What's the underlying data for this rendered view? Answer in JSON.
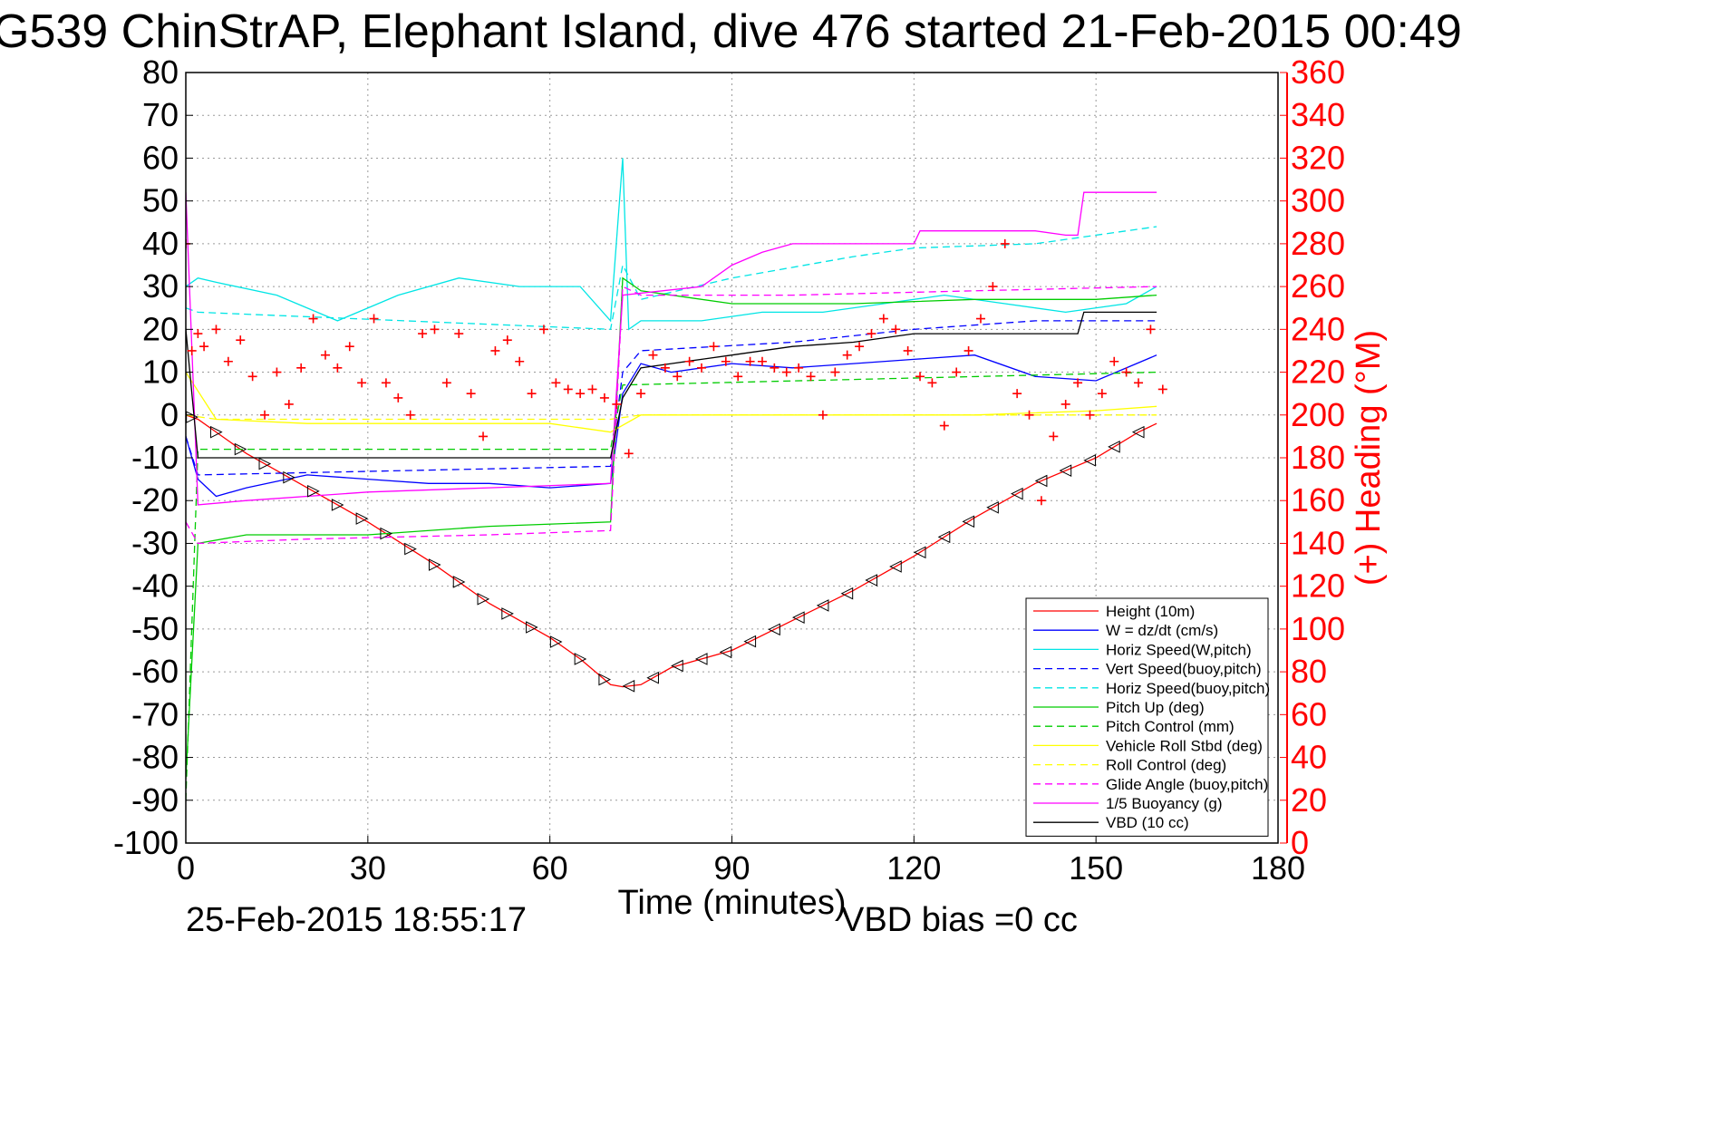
{
  "chart_data": {
    "type": "line",
    "title": "G539 ChinStrAP, Elephant Island, dive 476 started 21-Feb-2015 00:49",
    "xlabel": "Time (minutes)",
    "ylabel_right": "(+) Heading (°M)",
    "xlim": [
      0,
      180
    ],
    "ylim": [
      -100,
      80
    ],
    "ylim_right": [
      0,
      360
    ],
    "x_ticks": [
      "0",
      "30",
      "60",
      "90",
      "120",
      "150",
      "180"
    ],
    "y_ticks": [
      "80",
      "70",
      "60",
      "50",
      "40",
      "30",
      "20",
      "10",
      "0",
      "-10",
      "-20",
      "-30",
      "-40",
      "-50",
      "-60",
      "-70",
      "-80",
      "-90",
      "-100"
    ],
    "y_ticks_right": [
      "360",
      "340",
      "320",
      "300",
      "280",
      "260",
      "240",
      "220",
      "200",
      "180",
      "160",
      "140",
      "120",
      "100",
      "80",
      "60",
      "40",
      "20",
      "0"
    ],
    "grid": true,
    "legend_position": "bottom-right",
    "footer_date": "25-Feb-2015 18:55:17",
    "footer_bias": "VBD bias =0 cc",
    "colors": {
      "red": "#ff0000",
      "blue": "#0000ff",
      "cyan": "#00e5e5",
      "green": "#00cc00",
      "yellow": "#ffff00",
      "magenta": "#ff00ff",
      "black": "#000000"
    },
    "series": [
      {
        "name": "Height (10m)",
        "color": "#ff0000",
        "dash": false,
        "x": [
          0,
          2,
          10,
          20,
          30,
          40,
          50,
          60,
          65,
          70,
          72,
          75,
          80,
          90,
          100,
          110,
          120,
          130,
          140,
          150,
          157,
          160
        ],
        "y": [
          0,
          -1,
          -9,
          -17,
          -25,
          -34,
          -44,
          -52,
          -57,
          -63,
          -63.5,
          -63,
          -59,
          -55,
          -48,
          -41,
          -33,
          -24,
          -16,
          -10,
          -4,
          -2
        ]
      },
      {
        "name": "W = dz/dt (cm/s)",
        "color": "#0000ff",
        "dash": false,
        "x": [
          0,
          2,
          5,
          10,
          20,
          30,
          40,
          50,
          60,
          70,
          72,
          75,
          80,
          90,
          100,
          110,
          120,
          130,
          140,
          150,
          160
        ],
        "y": [
          -5,
          -15,
          -19,
          -17,
          -14,
          -15,
          -16,
          -16,
          -17,
          -16,
          5,
          12,
          10,
          12,
          11,
          12,
          13,
          14,
          9,
          8,
          14
        ]
      },
      {
        "name": "Horiz Speed(W,pitch)",
        "color": "#00e5e5",
        "dash": false,
        "x": [
          0,
          2,
          5,
          15,
          25,
          35,
          45,
          55,
          65,
          70,
          72,
          73,
          75,
          85,
          95,
          105,
          115,
          125,
          135,
          145,
          155,
          160
        ],
        "y": [
          30,
          32,
          31,
          28,
          22,
          28,
          32,
          30,
          30,
          22,
          60,
          20,
          22,
          22,
          24,
          24,
          26,
          28,
          26,
          24,
          26,
          30
        ]
      },
      {
        "name": "Vert Speed(buoy,pitch)",
        "color": "#0000ff",
        "dash": true,
        "x": [
          0,
          2,
          70,
          72,
          75,
          100,
          120,
          140,
          160
        ],
        "y": [
          -5,
          -14,
          -12,
          10,
          15,
          17,
          20,
          22,
          22
        ]
      },
      {
        "name": "Horiz Speed(buoy,pitch)",
        "color": "#00e5e5",
        "dash": true,
        "x": [
          0,
          2,
          70,
          72,
          75,
          90,
          110,
          120,
          140,
          150,
          160
        ],
        "y": [
          25,
          24,
          20,
          35,
          27,
          32,
          37,
          39,
          40,
          42,
          44
        ]
      },
      {
        "name": "Pitch Up (deg)",
        "color": "#00cc00",
        "dash": false,
        "x": [
          0,
          2,
          10,
          30,
          50,
          70,
          72,
          75,
          90,
          110,
          130,
          150,
          160
        ],
        "y": [
          -85,
          -30,
          -28,
          -28,
          -26,
          -25,
          32,
          29,
          26,
          26,
          27,
          27,
          28
        ]
      },
      {
        "name": "Pitch Control (mm)",
        "color": "#00cc00",
        "dash": true,
        "x": [
          0,
          2,
          70,
          72,
          160
        ],
        "y": [
          -90,
          -8,
          -8,
          7,
          10
        ]
      },
      {
        "name": "Vehicle Roll Stbd (deg)",
        "color": "#ffff00",
        "dash": false,
        "x": [
          0,
          5,
          20,
          40,
          60,
          70,
          75,
          90,
          110,
          130,
          150,
          160
        ],
        "y": [
          10,
          -1,
          -2,
          -2,
          -2,
          -4,
          0,
          0,
          0,
          0,
          1,
          2
        ]
      },
      {
        "name": "Roll Control (deg)",
        "color": "#ffff00",
        "dash": true,
        "x": [
          0,
          5,
          70,
          75,
          160
        ],
        "y": [
          0,
          -1,
          -1,
          0,
          0
        ]
      },
      {
        "name": "Glide Angle (buoy,pitch)",
        "color": "#ff00ff",
        "dash": true,
        "x": [
          0,
          2,
          20,
          50,
          70,
          72,
          75,
          100,
          130,
          160
        ],
        "y": [
          -25,
          -30,
          -29,
          -28,
          -27,
          30,
          28,
          28,
          29,
          30
        ]
      },
      {
        "name": "1/5 Buoyancy (g)",
        "color": "#ff00ff",
        "dash": false,
        "x": [
          0,
          2,
          10,
          30,
          50,
          70,
          72,
          85,
          90,
          95,
          100,
          120,
          121,
          140,
          145,
          147,
          148,
          160
        ],
        "y": [
          52,
          -21,
          -20,
          -18,
          -17,
          -16,
          28,
          30,
          35,
          38,
          40,
          40,
          43,
          43,
          42,
          42,
          52,
          52
        ]
      },
      {
        "name": "VBD (10 cc)",
        "color": "#000000",
        "dash": false,
        "x": [
          0,
          2,
          70,
          72,
          75,
          80,
          85,
          90,
          100,
          110,
          120,
          130,
          140,
          147,
          148,
          160
        ],
        "y": [
          20,
          -10,
          -10,
          4,
          11,
          12,
          13,
          14,
          16,
          17,
          19,
          19,
          19,
          19,
          24,
          24
        ]
      },
      {
        "name": "",
        "axis": "right",
        "color": "#ff0000",
        "marker": "+",
        "x": [
          0,
          1,
          2,
          3,
          5,
          7,
          9,
          11,
          13,
          15,
          17,
          19,
          21,
          23,
          25,
          27,
          29,
          31,
          33,
          35,
          37,
          39,
          41,
          43,
          45,
          47,
          49,
          51,
          53,
          55,
          57,
          59,
          61,
          63,
          65,
          67,
          69,
          71,
          73,
          75,
          77,
          79,
          81,
          83,
          85,
          87,
          89,
          91,
          93,
          95,
          97,
          99,
          101,
          103,
          105,
          107,
          109,
          111,
          113,
          115,
          117,
          119,
          121,
          123,
          125,
          127,
          129,
          131,
          133,
          135,
          137,
          139,
          141,
          143,
          145,
          147,
          149,
          151,
          153,
          155,
          157,
          159,
          161
        ],
        "y": [
          280,
          230,
          238,
          232,
          240,
          225,
          235,
          218,
          200,
          220,
          205,
          222,
          245,
          228,
          222,
          232,
          215,
          245,
          215,
          208,
          200,
          238,
          240,
          215,
          238,
          210,
          190,
          230,
          235,
          225,
          210,
          240,
          215,
          212,
          210,
          212,
          208,
          205,
          182,
          210,
          228,
          222,
          218,
          225,
          222,
          232,
          225,
          218,
          225,
          225,
          222,
          220,
          222,
          218,
          200,
          220,
          228,
          232,
          238,
          245,
          240,
          230,
          218,
          215,
          195,
          220,
          230,
          245,
          260,
          280,
          210,
          200,
          160,
          190,
          205,
          215,
          200,
          210,
          225,
          220,
          215,
          240,
          212
        ]
      }
    ]
  }
}
